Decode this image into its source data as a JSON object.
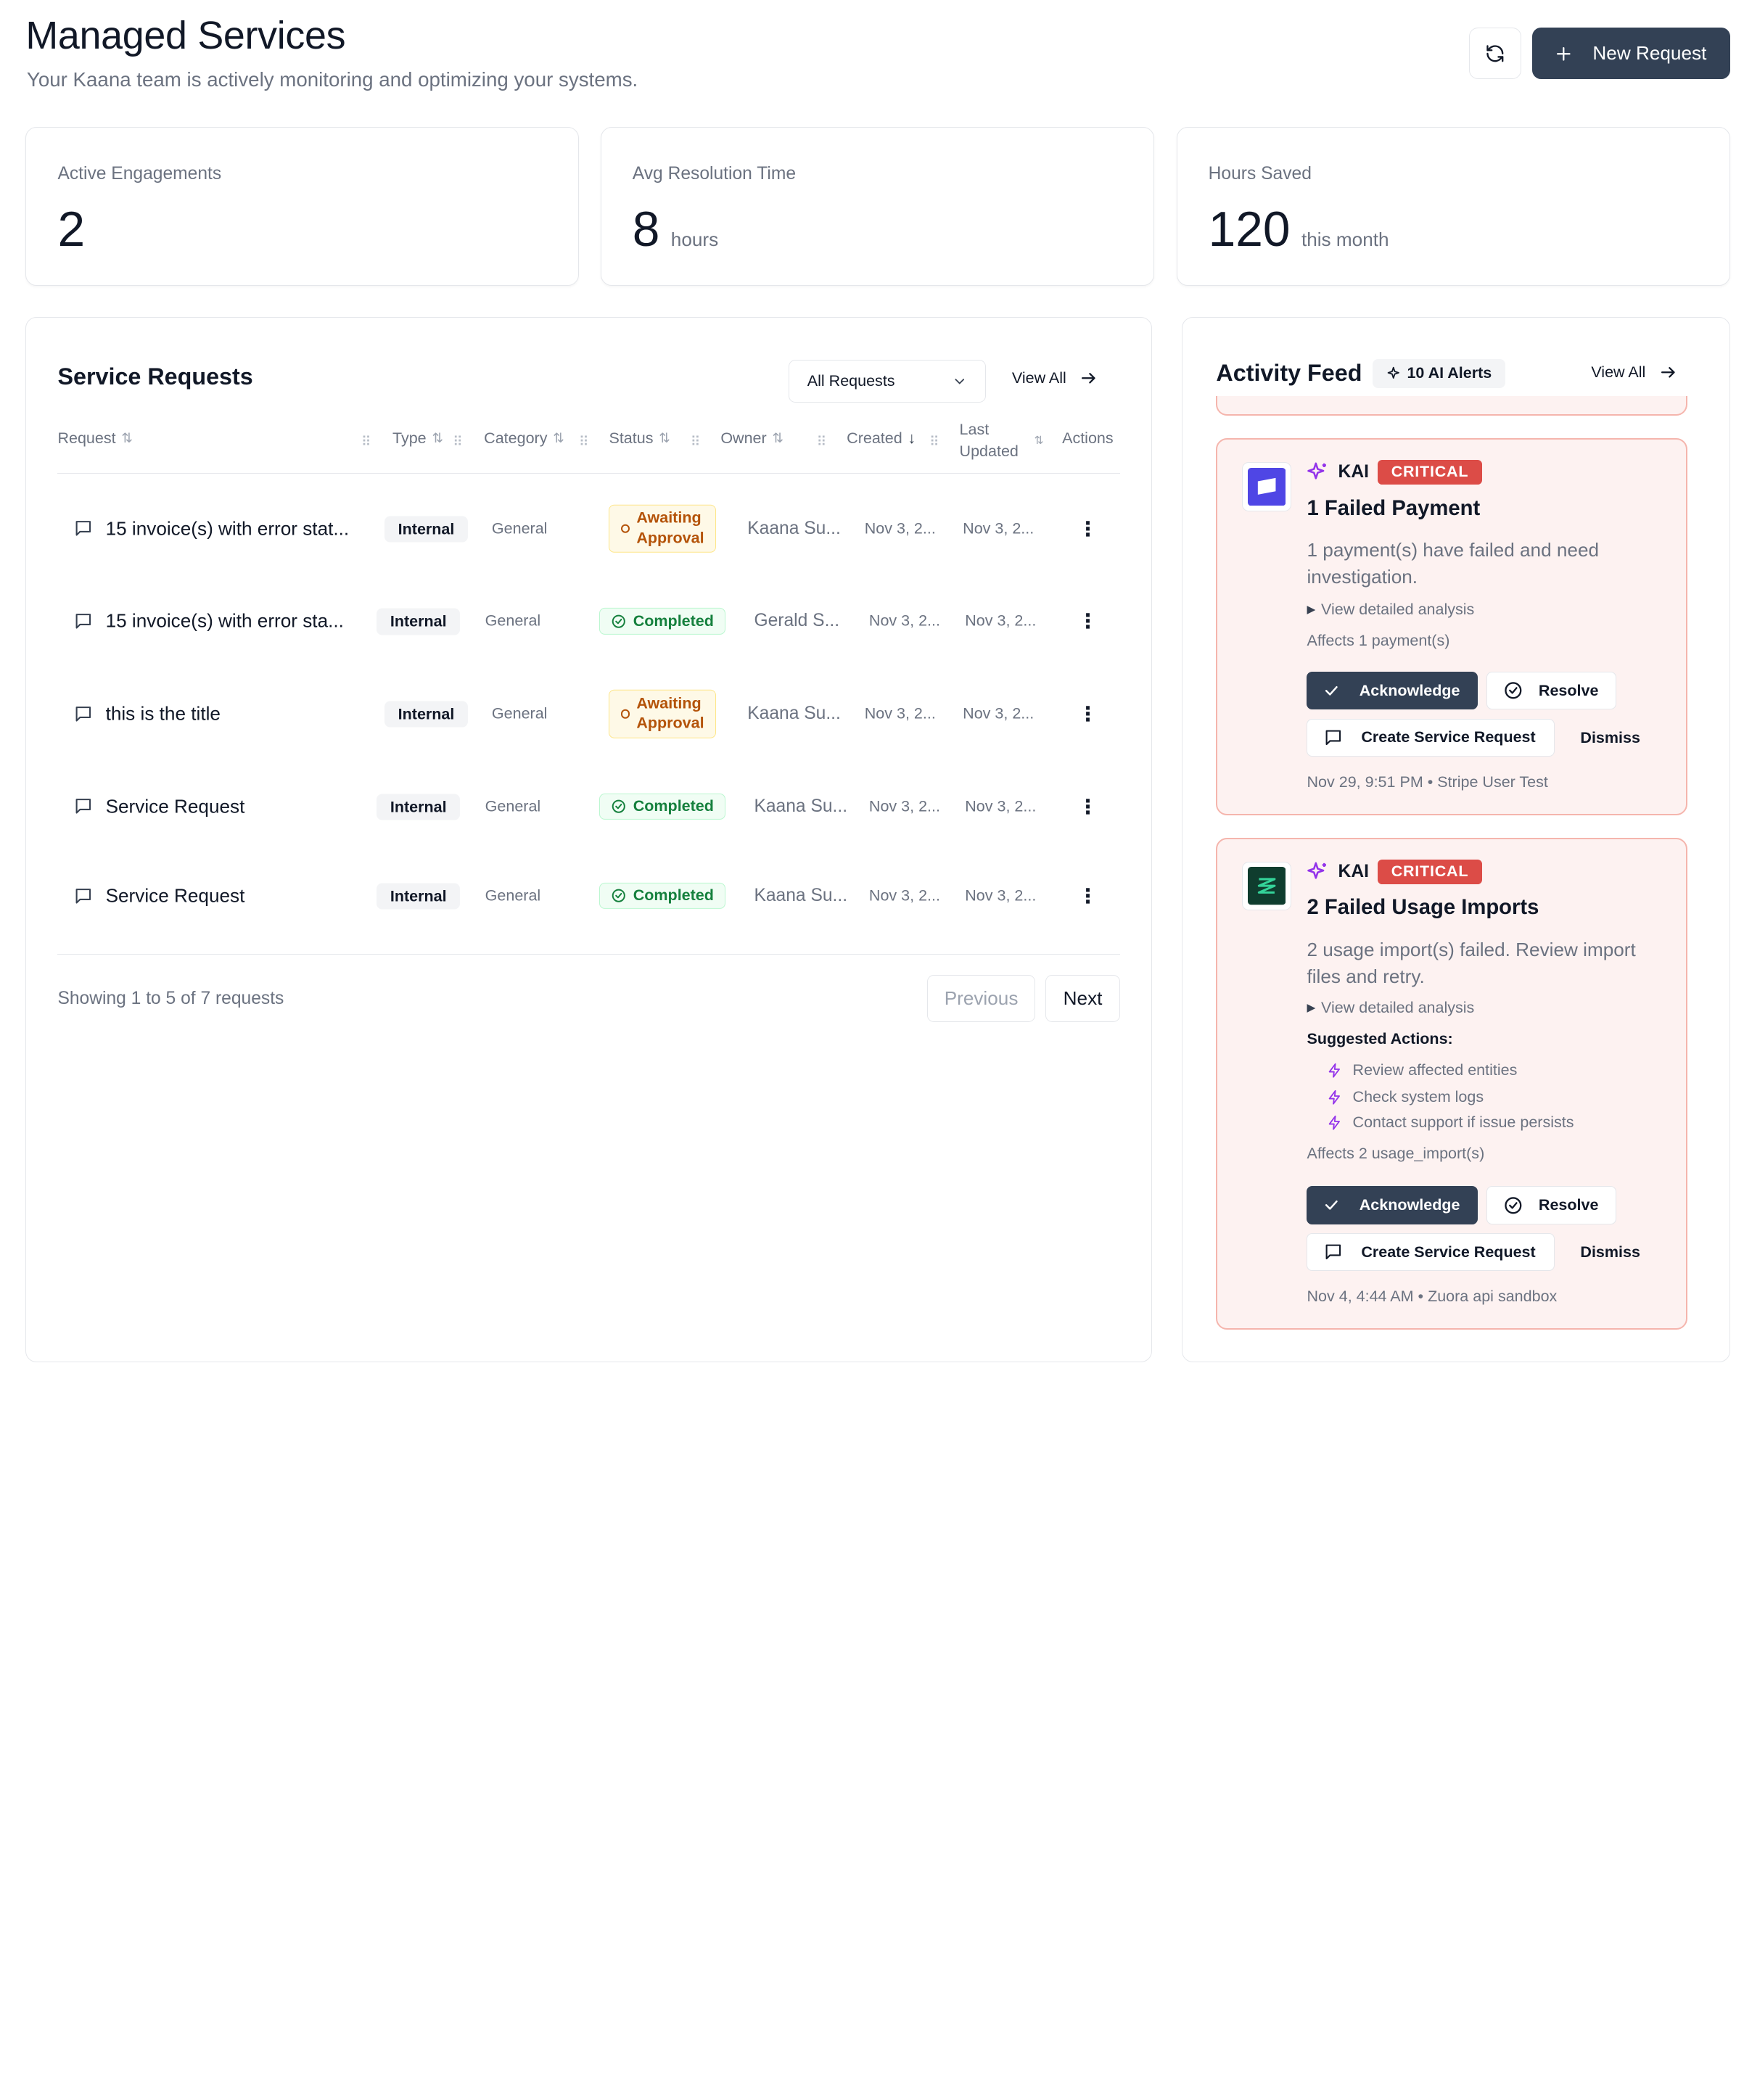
{
  "header": {
    "title": "Managed Services",
    "subtitle": "Your Kaana team is actively monitoring and optimizing your systems.",
    "refresh_icon": "refresh-icon",
    "new_request_label": "New Request"
  },
  "stats": [
    {
      "label": "Active Engagements",
      "value": "2",
      "unit": ""
    },
    {
      "label": "Avg Resolution Time",
      "value": "8",
      "unit": "hours"
    },
    {
      "label": "Hours Saved",
      "value": "120",
      "unit": "this month"
    }
  ],
  "service_requests": {
    "title": "Service Requests",
    "filter_value": "All Requests",
    "view_all": "View All",
    "columns": {
      "request": "Request",
      "type": "Type",
      "category": "Category",
      "status": "Status",
      "owner": "Owner",
      "created": "Created",
      "last_updated_1": "Last",
      "last_updated_2": "Updated",
      "actions": "Actions"
    },
    "rows": [
      {
        "request": "15 invoice(s) with error stat...",
        "type": "Internal",
        "category": "General",
        "status_1": "Awaiting",
        "status_2": "Approval",
        "owner": "Kaana Su...",
        "created": "Nov 3, 2...",
        "updated": "Nov 3, 2..."
      },
      {
        "request": "15 invoice(s) with error sta...",
        "type": "Internal",
        "category": "General",
        "status": "Completed",
        "owner": "Gerald S...",
        "created": "Nov 3, 2...",
        "updated": "Nov 3, 2..."
      },
      {
        "request": "this is the title",
        "type": "Internal",
        "category": "General",
        "status_1": "Awaiting",
        "status_2": "Approval",
        "owner": "Kaana Su...",
        "created": "Nov 3, 2...",
        "updated": "Nov 3, 2..."
      },
      {
        "request": "Service Request",
        "type": "Internal",
        "category": "General",
        "status": "Completed",
        "owner": "Kaana Su...",
        "created": "Nov 3, 2...",
        "updated": "Nov 3, 2..."
      },
      {
        "request": "Service Request",
        "type": "Internal",
        "category": "General",
        "status": "Completed",
        "owner": "Kaana Su...",
        "created": "Nov 3, 2...",
        "updated": "Nov 3, 2..."
      }
    ],
    "showing": "Showing 1 to 5 of 7 requests",
    "previous": "Previous",
    "next": "Next"
  },
  "activity_feed": {
    "title": "Activity Feed",
    "alerts_badge": "10 AI Alerts",
    "view_all": "View All",
    "alerts": [
      {
        "source": "KAI",
        "severity": "CRITICAL",
        "title": "1 Failed Payment",
        "description": "1 payment(s) have failed and need investigation.",
        "analysis": "View detailed analysis",
        "affects": "Affects 1 payment(s)",
        "acknowledge": "Acknowledge",
        "resolve": "Resolve",
        "create_sr": "Create Service Request",
        "dismiss": "Dismiss",
        "meta": "Nov 29, 9:51 PM • Stripe User Test",
        "logo_color": "#4f46e5"
      },
      {
        "source": "KAI",
        "severity": "CRITICAL",
        "title": "2 Failed Usage Imports",
        "description": "2 usage import(s) failed. Review import files and retry.",
        "analysis": "View detailed analysis",
        "suggested_title": "Suggested Actions:",
        "suggested": [
          "Review affected entities",
          "Check system logs",
          "Contact support if issue persists"
        ],
        "affects": "Affects 2 usage_import(s)",
        "acknowledge": "Acknowledge",
        "resolve": "Resolve",
        "create_sr": "Create Service Request",
        "dismiss": "Dismiss",
        "meta": "Nov 4, 4:44 AM • Zuora api sandbox",
        "logo_color": "#0f3d2e"
      }
    ]
  }
}
